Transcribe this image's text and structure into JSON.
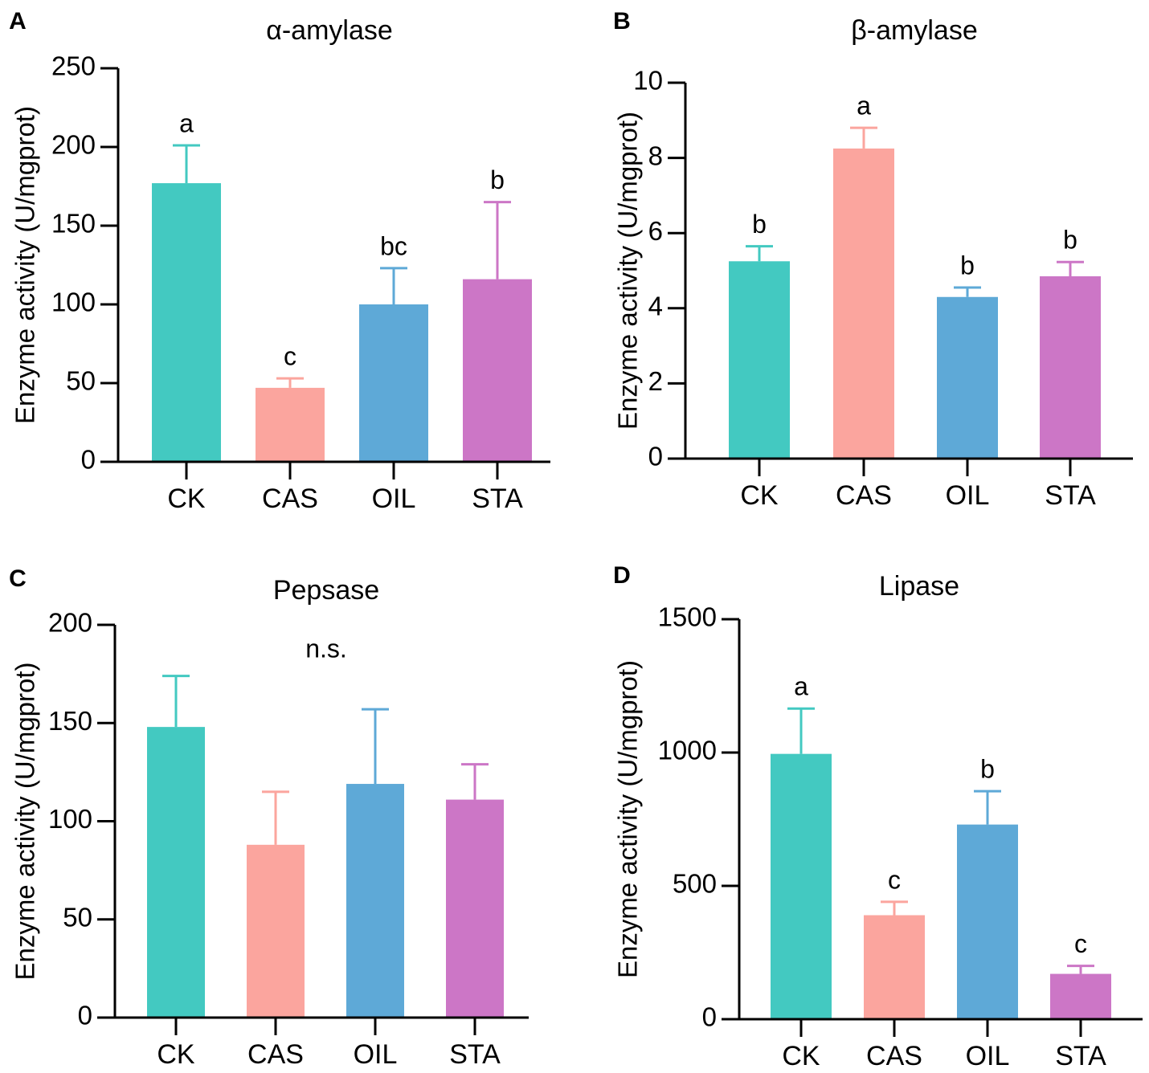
{
  "chart_data": [
    {
      "type": "bar",
      "panel_label": "A",
      "title": "α-amylase",
      "ylabel": "Enzyme activity (U/mgprot)",
      "ylim": [
        0,
        250
      ],
      "yticks": [
        0,
        50,
        100,
        150,
        200,
        250
      ],
      "categories": [
        "CK",
        "CAS",
        "OIL",
        "STA"
      ],
      "values": [
        177,
        47,
        100,
        116
      ],
      "errors": [
        24,
        6,
        23,
        49
      ],
      "annotations": [
        "a",
        "c",
        "bc",
        "b"
      ],
      "colors": [
        "#43c9c1",
        "#fba59e",
        "#5ea9d7",
        "#cc76c6"
      ]
    },
    {
      "type": "bar",
      "panel_label": "B",
      "title": "β-amylase",
      "ylabel": "Enzyme activity (U/mgprot)",
      "ylim": [
        0,
        10
      ],
      "yticks": [
        0,
        2,
        4,
        6,
        8,
        10
      ],
      "categories": [
        "CK",
        "CAS",
        "OIL",
        "STA"
      ],
      "values": [
        5.25,
        8.25,
        4.3,
        4.85
      ],
      "errors": [
        0.4,
        0.55,
        0.25,
        0.38
      ],
      "annotations": [
        "b",
        "a",
        "b",
        "b"
      ],
      "colors": [
        "#43c9c1",
        "#fba59e",
        "#5ea9d7",
        "#cc76c6"
      ]
    },
    {
      "type": "bar",
      "panel_label": "C",
      "title": "Pepsase",
      "ylabel": "Enzyme activity (U/mgprot)",
      "ylim": [
        0,
        200
      ],
      "yticks": [
        0,
        50,
        100,
        150,
        200
      ],
      "categories": [
        "CK",
        "CAS",
        "OIL",
        "STA"
      ],
      "values": [
        148,
        88,
        119,
        111
      ],
      "errors": [
        26,
        27,
        38,
        18
      ],
      "annotations": [],
      "center_note": "n.s.",
      "colors": [
        "#43c9c1",
        "#fba59e",
        "#5ea9d7",
        "#cc76c6"
      ]
    },
    {
      "type": "bar",
      "panel_label": "D",
      "title": "Lipase",
      "ylabel": "Enzyme activity (U/mgprot)",
      "ylim": [
        0,
        1500
      ],
      "yticks": [
        0,
        500,
        1000,
        1500
      ],
      "categories": [
        "CK",
        "CAS",
        "OIL",
        "STA"
      ],
      "values": [
        995,
        390,
        730,
        170
      ],
      "errors": [
        170,
        50,
        125,
        30
      ],
      "annotations": [
        "a",
        "c",
        "b",
        "c"
      ],
      "colors": [
        "#43c9c1",
        "#fba59e",
        "#5ea9d7",
        "#cc76c6"
      ]
    }
  ]
}
